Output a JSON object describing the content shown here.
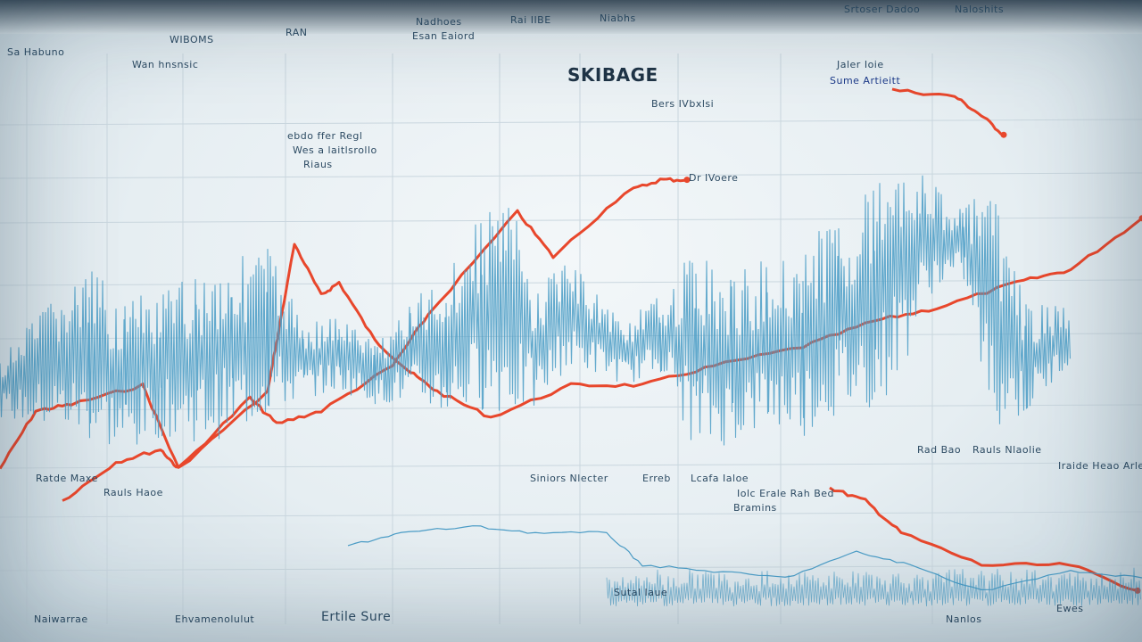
{
  "labels": {
    "title": "SKIBAGE",
    "subtitle": "Bers IVbxlsi",
    "series_note": "Dr IVoere",
    "annotation1": "ebdo ffer Regl",
    "annotation2": "Wes a laitlsrollo",
    "annotation3": "Riaus",
    "top1": "WIBOMS",
    "top2": "RAN",
    "top3": "Nadhoes",
    "top4": "Esan Eaiord",
    "top5": "Rai IIBE",
    "top6": "Niabhs",
    "top7": "Srtoser Dadoo",
    "top8": "Naloshits",
    "left1": "Sa Habuno",
    "left2": "Wan hnsnsic",
    "right1": "Jaler Ioie",
    "right2": "Sume Artieitt",
    "mid1": "Ratde Maxe",
    "mid2": "Rauls Haoe",
    "mid3": "Siniors Nlecter",
    "mid4": "Erreb",
    "mid5": "Lcafa Ialoe",
    "mid6": "Iolc Erale Rah Bed",
    "mid7": "Bramins",
    "right3": "Rad Bao",
    "right4": "Rauls Nlaolie",
    "right5": "Iraide Heao Arle",
    "bottom1": "Naiwarrae",
    "bottom2": "Ehvamenolulut",
    "bottom3": "Ertile Sure",
    "bottom4": "Sutal Iaue",
    "bottom5": "Nanlos",
    "bottom6": "Ewes"
  },
  "chart_data": {
    "type": "line",
    "title": "SKIBAGE",
    "grid": true,
    "legend": "none",
    "colors": {
      "red": "#e8472c",
      "blue": "#4a9cc6",
      "grid": "#c9d6de"
    },
    "series": [
      {
        "color": "red",
        "x": [
          0,
          4,
          8,
          16,
          20,
          30,
          33,
          36,
          38,
          42,
          46,
          49,
          55,
          64,
          72,
          80,
          90,
          98,
          105,
          114,
          120,
          128
        ],
        "y": [
          27,
          36,
          37,
          40,
          27,
          39,
          62,
          54,
          56,
          47,
          42,
          39,
          35,
          40,
          40,
          43,
          46,
          50,
          52,
          56,
          58,
          66
        ]
      },
      {
        "color": "red",
        "x": [
          7,
          13,
          18,
          20,
          28,
          31,
          36,
          44,
          48,
          58,
          62,
          70,
          74,
          77
        ],
        "y": [
          22,
          28,
          30,
          27,
          38,
          34,
          36,
          43,
          51,
          67,
          60,
          70,
          72,
          72
        ]
      },
      {
        "color": "red",
        "x": [
          100,
          107,
          110,
          112.5
        ],
        "y": [
          86,
          85,
          82,
          79
        ]
      },
      {
        "color": "red",
        "x": [
          93,
          97,
          101,
          110,
          120,
          127.5
        ],
        "y": [
          24,
          22,
          17,
          12,
          12,
          8
        ]
      },
      {
        "color": "blue",
        "style": "band",
        "x": [
          0,
          6,
          10,
          14,
          18,
          22,
          26,
          30,
          34,
          38,
          42,
          46,
          50,
          54,
          57,
          60,
          63,
          66,
          70,
          74,
          78,
          82,
          86,
          90,
          94,
          98,
          101,
          104,
          108,
          111,
          115,
          120
        ],
        "high": [
          44,
          54,
          58,
          54,
          54,
          58,
          60,
          62,
          50,
          51,
          47,
          53,
          58,
          67,
          71,
          54,
          61,
          56,
          50,
          54,
          62,
          57,
          60,
          62,
          67,
          72,
          79,
          72,
          68,
          71,
          53,
          52
        ],
        "low": [
          35,
          33,
          31,
          29,
          32,
          31,
          32,
          35,
          38,
          39,
          37,
          37,
          35,
          36,
          35,
          36,
          42,
          42,
          40,
          42,
          29,
          31,
          33,
          32,
          35,
          36,
          42,
          54,
          56,
          33,
          35,
          44
        ]
      },
      {
        "color": "blue",
        "x": [
          39,
          45,
          53,
          60,
          68,
          72,
          80,
          88,
          96,
          102,
          110,
          120,
          128
        ],
        "y": [
          15,
          17,
          18,
          17,
          17,
          12,
          11,
          10,
          14,
          12,
          8,
          11,
          10
        ]
      }
    ]
  }
}
